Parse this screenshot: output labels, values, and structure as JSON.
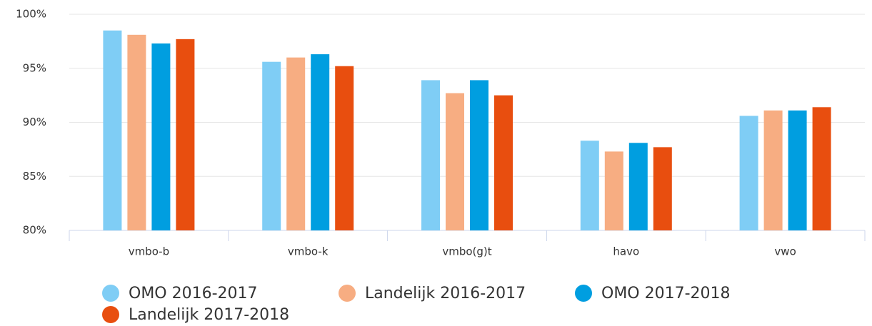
{
  "chart_data": {
    "type": "bar",
    "categories": [
      "vmbo-b",
      "vmbo-k",
      "vmbo(g)t",
      "havo",
      "vwo"
    ],
    "series": [
      {
        "name": "OMO 2016-2017",
        "color": "#7fcdf5",
        "values": [
          98.5,
          95.6,
          93.9,
          88.3,
          90.6
        ]
      },
      {
        "name": "Landelijk 2016-2017",
        "color": "#f7ad82",
        "values": [
          98.1,
          96.0,
          92.7,
          87.3,
          91.1
        ]
      },
      {
        "name": "OMO 2017-2018",
        "color": "#009ee0",
        "values": [
          97.3,
          96.3,
          93.9,
          88.1,
          91.1
        ]
      },
      {
        "name": "Landelijk 2017-2018",
        "color": "#e84e0f",
        "values": [
          97.7,
          95.2,
          92.5,
          87.7,
          91.4
        ]
      }
    ],
    "ylim": [
      80,
      100
    ],
    "yticks": [
      {
        "value": 80,
        "label": "80%"
      },
      {
        "value": 85,
        "label": "85%"
      },
      {
        "value": 90,
        "label": "90%"
      },
      {
        "value": 95,
        "label": "95%"
      },
      {
        "value": 100,
        "label": "100%"
      }
    ],
    "grid": true
  }
}
